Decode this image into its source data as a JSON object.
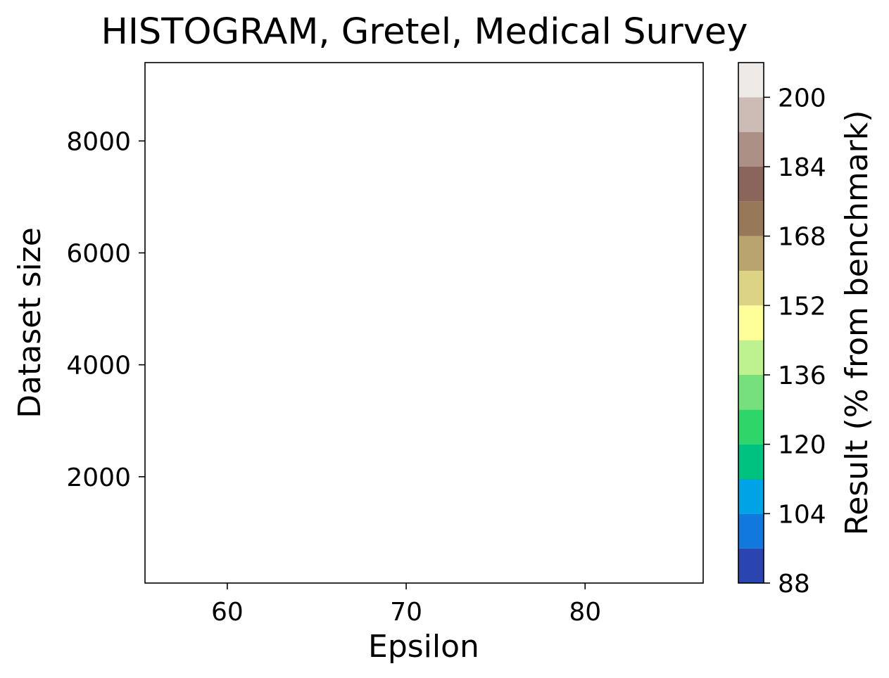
{
  "chart_data": {
    "type": "heatmap",
    "title": "HISTOGRAM, Gretel, Medical Survey",
    "xlabel": "Epsilon",
    "ylabel": "Dataset size",
    "xlim": [
      55.4,
      86.6
    ],
    "ylim": [
      100,
      9400
    ],
    "xticks": [
      60,
      70,
      80
    ],
    "yticks": [
      2000,
      4000,
      6000,
      8000
    ],
    "grid": false,
    "data": [],
    "colorbar": {
      "label": "Result (% from benchmark)",
      "min": 88,
      "max": 208,
      "ticks": [
        88,
        104,
        120,
        136,
        152,
        168,
        184,
        200
      ],
      "levels": [
        88,
        96,
        104,
        112,
        120,
        128,
        136,
        144,
        152,
        160,
        168,
        176,
        184,
        192,
        200,
        208
      ],
      "colors": [
        "#2a45b0",
        "#1179de",
        "#00a3e6",
        "#00c280",
        "#2ed66a",
        "#76e07c",
        "#bef290",
        "#ffff99",
        "#ddd385",
        "#b9a46f",
        "#977859",
        "#8a655c",
        "#ac8f85",
        "#cdbbb5",
        "#eeeae8"
      ]
    }
  }
}
